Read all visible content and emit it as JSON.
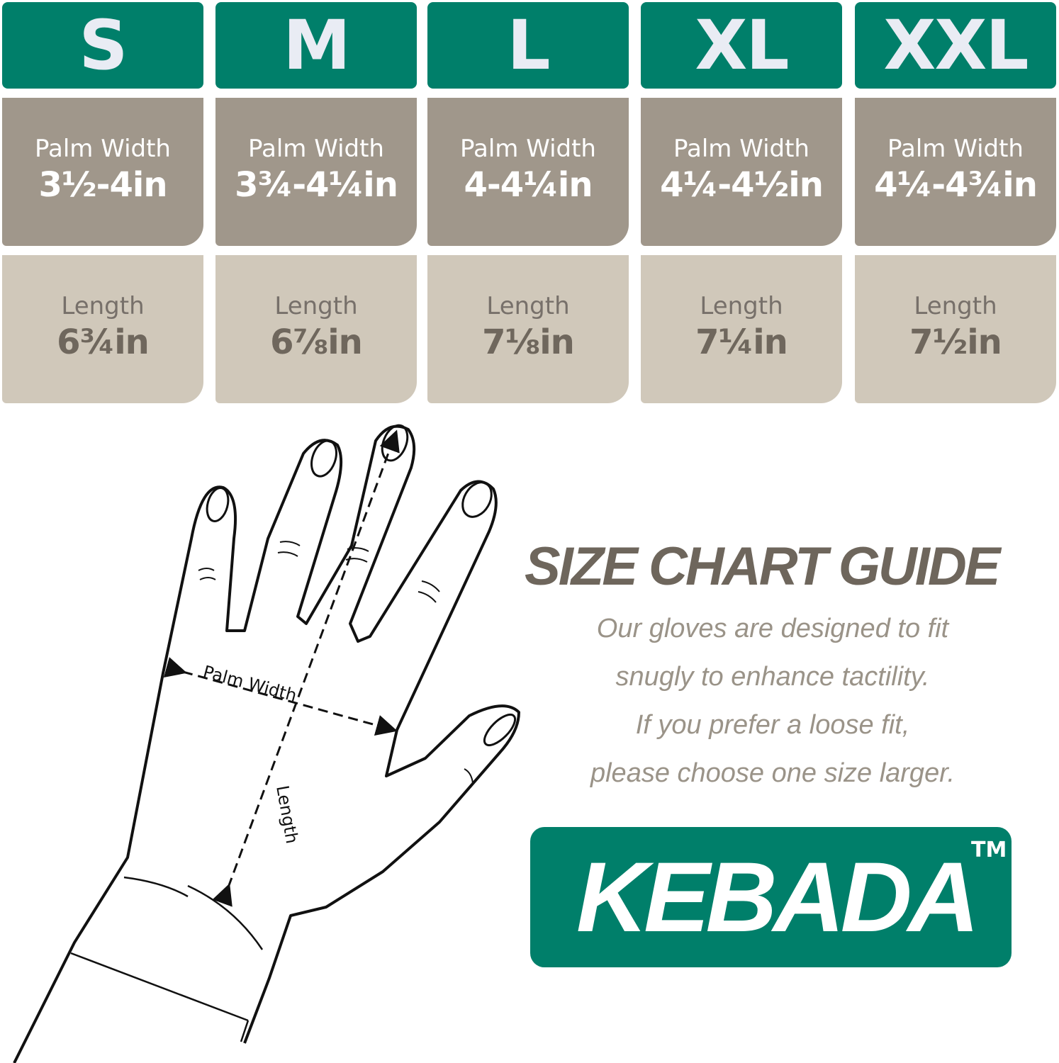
{
  "sizes": [
    {
      "size": "S",
      "palm_label": "Palm Width",
      "palm_value": "3½-4in",
      "length_label": "Length",
      "length_value": "6¾in"
    },
    {
      "size": "M",
      "palm_label": "Palm Width",
      "palm_value": "3¾-4¼in",
      "length_label": "Length",
      "length_value": "6⅞in"
    },
    {
      "size": "L",
      "palm_label": "Palm Width",
      "palm_value": "4-4¼in",
      "length_label": "Length",
      "length_value": "7⅛in"
    },
    {
      "size": "XL",
      "palm_label": "Palm Width",
      "palm_value": "4¼-4½in",
      "length_label": "Length",
      "length_value": "7¼in"
    },
    {
      "size": "XXL",
      "palm_label": "Palm Width",
      "palm_value": "4¼-4¾in",
      "length_label": "Length",
      "length_value": "7½in"
    }
  ],
  "diagram": {
    "palm_width_label": "Palm Width",
    "length_label": "Length"
  },
  "guide": {
    "title": "SIZE CHART GUIDE",
    "lines": [
      "Our gloves are designed to fit",
      "snugly to enhance tactility.",
      "If you prefer a loose fit,",
      "please choose one size larger."
    ]
  },
  "brand": {
    "name": "KEBADA",
    "tm": "TM"
  },
  "colors": {
    "header": "#007F6A",
    "palm": "#A0978B",
    "length": "#D0C8BA",
    "text": "#6E665C"
  }
}
